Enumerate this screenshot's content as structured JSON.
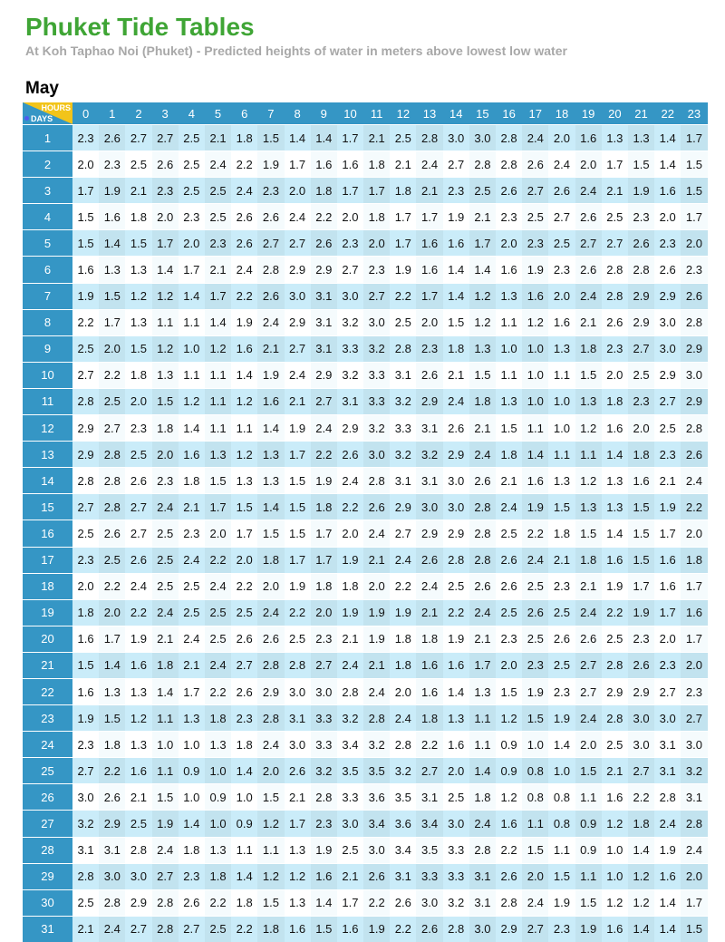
{
  "title": "Phuket Tide Tables",
  "subtitle": "At Koh Taphao Noi (Phuket) - Predicted heights of water in meters above lowest low water",
  "month": "May",
  "corner": {
    "hours_label": "HOURS",
    "days_label": "DAYS"
  },
  "colors": {
    "title": "#3fa535",
    "header": "#3596c5",
    "row_shaded": "#c2e3ef",
    "row_light": "#f5fbfd",
    "corner_triangle": "#f2c41a"
  },
  "hours": [
    "0",
    "1",
    "2",
    "3",
    "4",
    "5",
    "6",
    "7",
    "8",
    "9",
    "10",
    "11",
    "12",
    "13",
    "14",
    "15",
    "16",
    "17",
    "18",
    "19",
    "20",
    "21",
    "22",
    "23"
  ],
  "rows": [
    {
      "day": "1",
      "values": [
        "2.3",
        "2.6",
        "2.7",
        "2.7",
        "2.5",
        "2.1",
        "1.8",
        "1.5",
        "1.4",
        "1.4",
        "1.7",
        "2.1",
        "2.5",
        "2.8",
        "3.0",
        "3.0",
        "2.8",
        "2.4",
        "2.0",
        "1.6",
        "1.3",
        "1.3",
        "1.4",
        "1.7"
      ]
    },
    {
      "day": "2",
      "values": [
        "2.0",
        "2.3",
        "2.5",
        "2.6",
        "2.5",
        "2.4",
        "2.2",
        "1.9",
        "1.7",
        "1.6",
        "1.6",
        "1.8",
        "2.1",
        "2.4",
        "2.7",
        "2.8",
        "2.8",
        "2.6",
        "2.4",
        "2.0",
        "1.7",
        "1.5",
        "1.4",
        "1.5"
      ]
    },
    {
      "day": "3",
      "values": [
        "1.7",
        "1.9",
        "2.1",
        "2.3",
        "2.5",
        "2.5",
        "2.4",
        "2.3",
        "2.0",
        "1.8",
        "1.7",
        "1.7",
        "1.8",
        "2.1",
        "2.3",
        "2.5",
        "2.6",
        "2.7",
        "2.6",
        "2.4",
        "2.1",
        "1.9",
        "1.6",
        "1.5"
      ]
    },
    {
      "day": "4",
      "values": [
        "1.5",
        "1.6",
        "1.8",
        "2.0",
        "2.3",
        "2.5",
        "2.6",
        "2.6",
        "2.4",
        "2.2",
        "2.0",
        "1.8",
        "1.7",
        "1.7",
        "1.9",
        "2.1",
        "2.3",
        "2.5",
        "2.7",
        "2.6",
        "2.5",
        "2.3",
        "2.0",
        "1.7"
      ]
    },
    {
      "day": "5",
      "values": [
        "1.5",
        "1.4",
        "1.5",
        "1.7",
        "2.0",
        "2.3",
        "2.6",
        "2.7",
        "2.7",
        "2.6",
        "2.3",
        "2.0",
        "1.7",
        "1.6",
        "1.6",
        "1.7",
        "2.0",
        "2.3",
        "2.5",
        "2.7",
        "2.7",
        "2.6",
        "2.3",
        "2.0"
      ]
    },
    {
      "day": "6",
      "values": [
        "1.6",
        "1.3",
        "1.3",
        "1.4",
        "1.7",
        "2.1",
        "2.4",
        "2.8",
        "2.9",
        "2.9",
        "2.7",
        "2.3",
        "1.9",
        "1.6",
        "1.4",
        "1.4",
        "1.6",
        "1.9",
        "2.3",
        "2.6",
        "2.8",
        "2.8",
        "2.6",
        "2.3"
      ]
    },
    {
      "day": "7",
      "values": [
        "1.9",
        "1.5",
        "1.2",
        "1.2",
        "1.4",
        "1.7",
        "2.2",
        "2.6",
        "3.0",
        "3.1",
        "3.0",
        "2.7",
        "2.2",
        "1.7",
        "1.4",
        "1.2",
        "1.3",
        "1.6",
        "2.0",
        "2.4",
        "2.8",
        "2.9",
        "2.9",
        "2.6"
      ]
    },
    {
      "day": "8",
      "values": [
        "2.2",
        "1.7",
        "1.3",
        "1.1",
        "1.1",
        "1.4",
        "1.9",
        "2.4",
        "2.9",
        "3.1",
        "3.2",
        "3.0",
        "2.5",
        "2.0",
        "1.5",
        "1.2",
        "1.1",
        "1.2",
        "1.6",
        "2.1",
        "2.6",
        "2.9",
        "3.0",
        "2.8"
      ]
    },
    {
      "day": "9",
      "values": [
        "2.5",
        "2.0",
        "1.5",
        "1.2",
        "1.0",
        "1.2",
        "1.6",
        "2.1",
        "2.7",
        "3.1",
        "3.3",
        "3.2",
        "2.8",
        "2.3",
        "1.8",
        "1.3",
        "1.0",
        "1.0",
        "1.3",
        "1.8",
        "2.3",
        "2.7",
        "3.0",
        "2.9"
      ]
    },
    {
      "day": "10",
      "values": [
        "2.7",
        "2.2",
        "1.8",
        "1.3",
        "1.1",
        "1.1",
        "1.4",
        "1.9",
        "2.4",
        "2.9",
        "3.2",
        "3.3",
        "3.1",
        "2.6",
        "2.1",
        "1.5",
        "1.1",
        "1.0",
        "1.1",
        "1.5",
        "2.0",
        "2.5",
        "2.9",
        "3.0"
      ]
    },
    {
      "day": "11",
      "values": [
        "2.8",
        "2.5",
        "2.0",
        "1.5",
        "1.2",
        "1.1",
        "1.2",
        "1.6",
        "2.1",
        "2.7",
        "3.1",
        "3.3",
        "3.2",
        "2.9",
        "2.4",
        "1.8",
        "1.3",
        "1.0",
        "1.0",
        "1.3",
        "1.8",
        "2.3",
        "2.7",
        "2.9"
      ]
    },
    {
      "day": "12",
      "values": [
        "2.9",
        "2.7",
        "2.3",
        "1.8",
        "1.4",
        "1.1",
        "1.1",
        "1.4",
        "1.9",
        "2.4",
        "2.9",
        "3.2",
        "3.3",
        "3.1",
        "2.6",
        "2.1",
        "1.5",
        "1.1",
        "1.0",
        "1.2",
        "1.6",
        "2.0",
        "2.5",
        "2.8"
      ]
    },
    {
      "day": "13",
      "values": [
        "2.9",
        "2.8",
        "2.5",
        "2.0",
        "1.6",
        "1.3",
        "1.2",
        "1.3",
        "1.7",
        "2.2",
        "2.6",
        "3.0",
        "3.2",
        "3.2",
        "2.9",
        "2.4",
        "1.8",
        "1.4",
        "1.1",
        "1.1",
        "1.4",
        "1.8",
        "2.3",
        "2.6"
      ]
    },
    {
      "day": "14",
      "values": [
        "2.8",
        "2.8",
        "2.6",
        "2.3",
        "1.8",
        "1.5",
        "1.3",
        "1.3",
        "1.5",
        "1.9",
        "2.4",
        "2.8",
        "3.1",
        "3.1",
        "3.0",
        "2.6",
        "2.1",
        "1.6",
        "1.3",
        "1.2",
        "1.3",
        "1.6",
        "2.1",
        "2.4"
      ]
    },
    {
      "day": "15",
      "values": [
        "2.7",
        "2.8",
        "2.7",
        "2.4",
        "2.1",
        "1.7",
        "1.5",
        "1.4",
        "1.5",
        "1.8",
        "2.2",
        "2.6",
        "2.9",
        "3.0",
        "3.0",
        "2.8",
        "2.4",
        "1.9",
        "1.5",
        "1.3",
        "1.3",
        "1.5",
        "1.9",
        "2.2"
      ]
    },
    {
      "day": "16",
      "values": [
        "2.5",
        "2.6",
        "2.7",
        "2.5",
        "2.3",
        "2.0",
        "1.7",
        "1.5",
        "1.5",
        "1.7",
        "2.0",
        "2.4",
        "2.7",
        "2.9",
        "2.9",
        "2.8",
        "2.5",
        "2.2",
        "1.8",
        "1.5",
        "1.4",
        "1.5",
        "1.7",
        "2.0"
      ]
    },
    {
      "day": "17",
      "values": [
        "2.3",
        "2.5",
        "2.6",
        "2.5",
        "2.4",
        "2.2",
        "2.0",
        "1.8",
        "1.7",
        "1.7",
        "1.9",
        "2.1",
        "2.4",
        "2.6",
        "2.8",
        "2.8",
        "2.6",
        "2.4",
        "2.1",
        "1.8",
        "1.6",
        "1.5",
        "1.6",
        "1.8"
      ]
    },
    {
      "day": "18",
      "values": [
        "2.0",
        "2.2",
        "2.4",
        "2.5",
        "2.5",
        "2.4",
        "2.2",
        "2.0",
        "1.9",
        "1.8",
        "1.8",
        "2.0",
        "2.2",
        "2.4",
        "2.5",
        "2.6",
        "2.6",
        "2.5",
        "2.3",
        "2.1",
        "1.9",
        "1.7",
        "1.6",
        "1.7"
      ]
    },
    {
      "day": "19",
      "values": [
        "1.8",
        "2.0",
        "2.2",
        "2.4",
        "2.5",
        "2.5",
        "2.5",
        "2.4",
        "2.2",
        "2.0",
        "1.9",
        "1.9",
        "1.9",
        "2.1",
        "2.2",
        "2.4",
        "2.5",
        "2.6",
        "2.5",
        "2.4",
        "2.2",
        "1.9",
        "1.7",
        "1.6"
      ]
    },
    {
      "day": "20",
      "values": [
        "1.6",
        "1.7",
        "1.9",
        "2.1",
        "2.4",
        "2.5",
        "2.6",
        "2.6",
        "2.5",
        "2.3",
        "2.1",
        "1.9",
        "1.8",
        "1.8",
        "1.9",
        "2.1",
        "2.3",
        "2.5",
        "2.6",
        "2.6",
        "2.5",
        "2.3",
        "2.0",
        "1.7"
      ]
    },
    {
      "day": "21",
      "values": [
        "1.5",
        "1.4",
        "1.6",
        "1.8",
        "2.1",
        "2.4",
        "2.7",
        "2.8",
        "2.8",
        "2.7",
        "2.4",
        "2.1",
        "1.8",
        "1.6",
        "1.6",
        "1.7",
        "2.0",
        "2.3",
        "2.5",
        "2.7",
        "2.8",
        "2.6",
        "2.3",
        "2.0"
      ]
    },
    {
      "day": "22",
      "values": [
        "1.6",
        "1.3",
        "1.3",
        "1.4",
        "1.7",
        "2.2",
        "2.6",
        "2.9",
        "3.0",
        "3.0",
        "2.8",
        "2.4",
        "2.0",
        "1.6",
        "1.4",
        "1.3",
        "1.5",
        "1.9",
        "2.3",
        "2.7",
        "2.9",
        "2.9",
        "2.7",
        "2.3"
      ]
    },
    {
      "day": "23",
      "values": [
        "1.9",
        "1.5",
        "1.2",
        "1.1",
        "1.3",
        "1.8",
        "2.3",
        "2.8",
        "3.1",
        "3.3",
        "3.2",
        "2.8",
        "2.4",
        "1.8",
        "1.3",
        "1.1",
        "1.2",
        "1.5",
        "1.9",
        "2.4",
        "2.8",
        "3.0",
        "3.0",
        "2.7"
      ]
    },
    {
      "day": "24",
      "values": [
        "2.3",
        "1.8",
        "1.3",
        "1.0",
        "1.0",
        "1.3",
        "1.8",
        "2.4",
        "3.0",
        "3.3",
        "3.4",
        "3.2",
        "2.8",
        "2.2",
        "1.6",
        "1.1",
        "0.9",
        "1.0",
        "1.4",
        "2.0",
        "2.5",
        "3.0",
        "3.1",
        "3.0"
      ]
    },
    {
      "day": "25",
      "values": [
        "2.7",
        "2.2",
        "1.6",
        "1.1",
        "0.9",
        "1.0",
        "1.4",
        "2.0",
        "2.6",
        "3.2",
        "3.5",
        "3.5",
        "3.2",
        "2.7",
        "2.0",
        "1.4",
        "0.9",
        "0.8",
        "1.0",
        "1.5",
        "2.1",
        "2.7",
        "3.1",
        "3.2"
      ]
    },
    {
      "day": "26",
      "values": [
        "3.0",
        "2.6",
        "2.1",
        "1.5",
        "1.0",
        "0.9",
        "1.0",
        "1.5",
        "2.1",
        "2.8",
        "3.3",
        "3.6",
        "3.5",
        "3.1",
        "2.5",
        "1.8",
        "1.2",
        "0.8",
        "0.8",
        "1.1",
        "1.6",
        "2.2",
        "2.8",
        "3.1"
      ]
    },
    {
      "day": "27",
      "values": [
        "3.2",
        "2.9",
        "2.5",
        "1.9",
        "1.4",
        "1.0",
        "0.9",
        "1.2",
        "1.7",
        "2.3",
        "3.0",
        "3.4",
        "3.6",
        "3.4",
        "3.0",
        "2.4",
        "1.6",
        "1.1",
        "0.8",
        "0.9",
        "1.2",
        "1.8",
        "2.4",
        "2.8"
      ]
    },
    {
      "day": "28",
      "values": [
        "3.1",
        "3.1",
        "2.8",
        "2.4",
        "1.8",
        "1.3",
        "1.1",
        "1.1",
        "1.3",
        "1.9",
        "2.5",
        "3.0",
        "3.4",
        "3.5",
        "3.3",
        "2.8",
        "2.2",
        "1.5",
        "1.1",
        "0.9",
        "1.0",
        "1.4",
        "1.9",
        "2.4"
      ]
    },
    {
      "day": "29",
      "values": [
        "2.8",
        "3.0",
        "3.0",
        "2.7",
        "2.3",
        "1.8",
        "1.4",
        "1.2",
        "1.2",
        "1.6",
        "2.1",
        "2.6",
        "3.1",
        "3.3",
        "3.3",
        "3.1",
        "2.6",
        "2.0",
        "1.5",
        "1.1",
        "1.0",
        "1.2",
        "1.6",
        "2.0"
      ]
    },
    {
      "day": "30",
      "values": [
        "2.5",
        "2.8",
        "2.9",
        "2.8",
        "2.6",
        "2.2",
        "1.8",
        "1.5",
        "1.3",
        "1.4",
        "1.7",
        "2.2",
        "2.6",
        "3.0",
        "3.2",
        "3.1",
        "2.8",
        "2.4",
        "1.9",
        "1.5",
        "1.2",
        "1.2",
        "1.4",
        "1.7"
      ]
    },
    {
      "day": "31",
      "values": [
        "2.1",
        "2.4",
        "2.7",
        "2.8",
        "2.7",
        "2.5",
        "2.2",
        "1.8",
        "1.6",
        "1.5",
        "1.6",
        "1.9",
        "2.2",
        "2.6",
        "2.8",
        "3.0",
        "2.9",
        "2.7",
        "2.3",
        "1.9",
        "1.6",
        "1.4",
        "1.4",
        "1.5"
      ]
    }
  ]
}
